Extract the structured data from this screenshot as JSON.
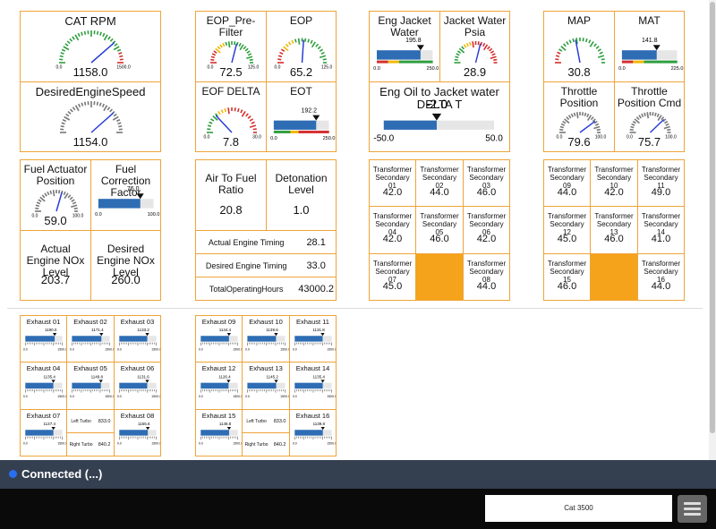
{
  "panels": [
    {
      "widgets": [
        {
          "type": "gauge",
          "title": "CAT RPM",
          "value": {
            "value": 1158,
            "label": "1158.0"
          },
          "range": [
            {
              "value": 0,
              "label": "0.0"
            },
            {
              "value": 1500,
              "label": "1500.0"
            }
          ],
          "scheme": "green"
        },
        {
          "type": "gauge",
          "title": "DesiredEngineSpeed",
          "value": {
            "value": 1154,
            "label": "1154.0"
          },
          "range": [
            0,
            1500
          ],
          "scheme": "gray"
        }
      ]
    },
    {
      "widgets": [
        {
          "type": "gauge",
          "title": "EOP_Pre-Filter",
          "value": 72.5,
          "range": [
            {
              "value": 0,
              "label": "0.0"
            },
            {
              "value": 125,
              "label": "125.0"
            }
          ],
          "scheme": "red-yellow-green"
        },
        {
          "type": "gauge",
          "title": "EOP",
          "value": 65.2,
          "range": [
            {
              "value": 0,
              "label": "0.0"
            },
            {
              "value": 125,
              "label": "125.0"
            }
          ],
          "scheme": "red-yellow-green"
        },
        {
          "type": "gauge",
          "title": "EOF DELTA",
          "value": 7.8,
          "range": [
            {
              "value": 0,
              "label": "0.0"
            },
            {
              "value": 30,
              "label": "30.0"
            }
          ],
          "scheme": "green-yellow-red"
        },
        {
          "type": "bar",
          "title": "EOT",
          "value": 192.2,
          "range": [
            {
              "value": 0,
              "label": "0.0"
            },
            {
              "value": 250,
              "label": "250.0"
            }
          ],
          "scheme": "green-yellow-red"
        }
      ]
    },
    {
      "widgets": [
        {
          "type": "bar",
          "title": "Eng Jacket Water",
          "value": 195.8,
          "range": [
            {
              "value": 0,
              "label": "0.0"
            },
            {
              "value": 250,
              "label": "250.0"
            }
          ],
          "scheme": "red-yellow-green"
        },
        {
          "type": "gauge",
          "title": "Jacket Water Psia",
          "value": 28.9,
          "range": [
            0,
            50
          ],
          "scheme": "green-yellow-red"
        },
        {
          "type": "bar",
          "title": "Eng Oil to Jacket water DELTA T",
          "value": {
            "value": -2,
            "label": "-2.0"
          },
          "range": [
            {
              "value": -50,
              "label": "-50.0"
            },
            {
              "value": 50,
              "label": "50.0"
            }
          ],
          "scheme": "none"
        }
      ]
    },
    {
      "widgets": [
        {
          "type": "gauge",
          "title": "MAP",
          "value": 30.8,
          "range": [
            0,
            70
          ],
          "scheme": "red-green"
        },
        {
          "type": "bar",
          "title": "MAT",
          "value": 141.8,
          "range": [
            {
              "value": 0,
              "label": "0.0"
            },
            {
              "value": 225,
              "label": "225.0"
            }
          ],
          "scheme": "red-yellow-green"
        },
        {
          "type": "gauge",
          "title": "Throttle Position",
          "value": 79.6,
          "range": [
            {
              "value": 0,
              "label": "0.0"
            },
            {
              "value": 100,
              "label": "100.0"
            }
          ],
          "scheme": "gray"
        },
        {
          "type": "gauge",
          "title": "Throttle Position Cmd",
          "value": 75.7,
          "range": [
            {
              "value": 0,
              "label": "0.0"
            },
            {
              "value": 100,
              "label": "100.0"
            }
          ],
          "scheme": "gray"
        }
      ]
    },
    {
      "widgets": [
        {
          "type": "gauge",
          "title": "Fuel Actuator Position",
          "value": {
            "value": 59,
            "label": "59.0"
          },
          "range": [
            {
              "value": 0,
              "label": "0.0"
            },
            {
              "value": 100,
              "label": "100.0"
            }
          ],
          "scheme": "gray"
        },
        {
          "type": "bar",
          "title": "Fuel Correction Factor",
          "value": {
            "value": 76,
            "label": "76.0"
          },
          "range": [
            {
              "value": 0,
              "label": "0.0"
            },
            {
              "value": 100,
              "label": "100.0"
            }
          ],
          "scheme": "none"
        },
        {
          "type": "text",
          "title": "Actual Engine NOx Level",
          "value": 203.7
        },
        {
          "type": "text",
          "title": "Desired Engine NOx Level",
          "value": {
            "value": 260,
            "label": "260.0"
          }
        }
      ]
    },
    {
      "widgets": [
        {
          "type": "text",
          "title": "Air To Fuel Ratio",
          "value": 20.8
        },
        {
          "type": "text",
          "title": "Detonation Level",
          "value": {
            "value": 1,
            "label": "1.0"
          }
        },
        {
          "type": "row",
          "title": "Actual Engine Timing",
          "value": 28.1
        },
        {
          "type": "row",
          "title": "Desired Engine Timing",
          "value": {
            "value": 33,
            "label": "33.0"
          }
        },
        {
          "type": "row",
          "title": "TotalOperatingHours",
          "value": 43000.2
        }
      ]
    },
    {
      "widgets": [
        {
          "type": "text",
          "title": "Transformer Secondary 01",
          "value": {
            "value": 42,
            "label": "42.0"
          }
        },
        {
          "type": "text",
          "title": "Transformer Secondary 02",
          "value": {
            "value": 44,
            "label": "44.0"
          }
        },
        {
          "type": "text",
          "title": "Transformer Secondary 03",
          "value": {
            "value": 46,
            "label": "46.0"
          }
        },
        {
          "type": "text",
          "title": "Transformer Secondary 04",
          "value": {
            "value": 42,
            "label": "42.0"
          }
        },
        {
          "type": "text",
          "title": "Transformer Secondary 05",
          "value": {
            "value": 46,
            "label": "46.0"
          }
        },
        {
          "type": "text",
          "title": "Transformer Secondary 06",
          "value": {
            "value": 42,
            "label": "42.0"
          }
        },
        {
          "type": "text",
          "title": "Transformer Secondary 07",
          "value": {
            "value": 45,
            "label": "45.0"
          }
        },
        {
          "type": "text",
          "title": "Transformer Secondary 08",
          "value": {
            "value": 44,
            "label": "44.0"
          }
        }
      ]
    },
    {
      "widgets": [
        {
          "type": "text",
          "title": "Transformer Secondary 09",
          "value": {
            "value": 44,
            "label": "44.0"
          }
        },
        {
          "type": "text",
          "title": "Transformer Secondary 10",
          "value": {
            "value": 42,
            "label": "42.0"
          }
        },
        {
          "type": "text",
          "title": "Transformer Secondary 11",
          "value": {
            "value": 49,
            "label": "49.0"
          }
        },
        {
          "type": "text",
          "title": "Transformer Secondary 12",
          "value": {
            "value": 45,
            "label": "45.0"
          }
        },
        {
          "type": "text",
          "title": "Transformer Secondary 13",
          "value": {
            "value": 46,
            "label": "46.0"
          }
        },
        {
          "type": "text",
          "title": "Transformer Secondary 14",
          "value": {
            "value": 41,
            "label": "41.0"
          }
        },
        {
          "type": "text",
          "title": "Transformer Secondary 15",
          "value": {
            "value": 46,
            "label": "46.0"
          }
        },
        {
          "type": "text",
          "title": "Transformer Secondary 16",
          "value": {
            "value": 44,
            "label": "44.0"
          }
        }
      ]
    },
    {
      "widgets": [
        {
          "type": "bar",
          "title": "Exhaust 01",
          "value": {
            "value": 1190,
            "label": "1190.0"
          },
          "range": [
            {
              "value": 0,
              "label": "0.0"
            },
            {
              "value": 1500,
              "label": "1500.0"
            }
          ],
          "scheme": "ruler"
        },
        {
          "type": "bar",
          "title": "Exhaust 02",
          "value": 1171.4,
          "range": [
            {
              "value": 0,
              "label": "0.0"
            },
            {
              "value": 1500,
              "label": "1500.0"
            }
          ],
          "scheme": "ruler"
        },
        {
          "type": "bar",
          "title": "Exhaust 03",
          "value": 1133.2,
          "range": [
            {
              "value": 0,
              "label": "0.0"
            },
            {
              "value": 1500,
              "label": "1500.0"
            }
          ],
          "scheme": "ruler"
        },
        {
          "type": "bar",
          "title": "Exhaust 04",
          "value": 1135.4,
          "range": [
            {
              "value": 0,
              "label": "0.0"
            },
            {
              "value": 1500,
              "label": "1500.0"
            }
          ],
          "scheme": "ruler"
        },
        {
          "type": "bar",
          "title": "Exhaust 05",
          "value": 1149.8,
          "range": [
            {
              "value": 0,
              "label": "0.0"
            },
            {
              "value": 1500,
              "label": "1500.0"
            }
          ],
          "scheme": "ruler"
        },
        {
          "type": "bar",
          "title": "Exhaust 06",
          "value": 1131.6,
          "range": [
            {
              "value": 0,
              "label": "0.0"
            },
            {
              "value": 1500,
              "label": "1500.0"
            }
          ],
          "scheme": "ruler"
        },
        {
          "type": "bar",
          "title": "Exhaust 07",
          "value": 1137.4,
          "range": [
            {
              "value": 0,
              "label": "0.0"
            },
            {
              "value": 1500,
              "label": "1500.0"
            }
          ],
          "scheme": "ruler"
        },
        {
          "type": "bar",
          "title": "Exhaust 08",
          "value": 1155.6,
          "range": [
            {
              "value": 0,
              "label": "0.0"
            },
            {
              "value": 1500,
              "label": "1500.0"
            }
          ],
          "scheme": "ruler"
        }
      ],
      "turbos": [
        {
          "name": "Left Turbo",
          "value": {
            "value": 833,
            "label": "833.0"
          }
        },
        {
          "name": "Right Turbo",
          "value": 840.2
        }
      ]
    },
    {
      "widgets": [
        {
          "type": "bar",
          "title": "Exhaust 09",
          "value": 1144.4,
          "range": [
            {
              "value": 0,
              "label": "0.0"
            },
            {
              "value": 1500,
              "label": "1500.0"
            }
          ],
          "scheme": "ruler"
        },
        {
          "type": "bar",
          "title": "Exhaust 10",
          "value": 1139.6,
          "range": [
            {
              "value": 0,
              "label": "0.0"
            },
            {
              "value": 1500,
              "label": "1500.0"
            }
          ],
          "scheme": "ruler"
        },
        {
          "type": "bar",
          "title": "Exhaust 11",
          "value": 1131.8,
          "range": [
            {
              "value": 0,
              "label": "0.0"
            },
            {
              "value": 1500,
              "label": "1500.0"
            }
          ],
          "scheme": "ruler"
        },
        {
          "type": "bar",
          "title": "Exhaust 12",
          "value": 1126.4,
          "range": [
            {
              "value": 0,
              "label": "0.0"
            },
            {
              "value": 1500,
              "label": "1500.0"
            }
          ],
          "scheme": "ruler"
        },
        {
          "type": "bar",
          "title": "Exhaust 13",
          "value": 1145.2,
          "range": [
            {
              "value": 0,
              "label": "0.0"
            },
            {
              "value": 1500,
              "label": "1500.0"
            }
          ],
          "scheme": "ruler"
        },
        {
          "type": "bar",
          "title": "Exhaust 14",
          "value": 1135.4,
          "range": [
            {
              "value": 0,
              "label": "0.0"
            },
            {
              "value": 1500,
              "label": "1500.0"
            }
          ],
          "scheme": "ruler"
        },
        {
          "type": "bar",
          "title": "Exhaust 15",
          "value": 1148.8,
          "range": [
            {
              "value": 0,
              "label": "0.0"
            },
            {
              "value": 1500,
              "label": "1500.0"
            }
          ],
          "scheme": "ruler"
        },
        {
          "type": "bar",
          "title": "Exhaust 16",
          "value": 1139.8,
          "range": [
            {
              "value": 0,
              "label": "0.0"
            },
            {
              "value": 1500,
              "label": "1500.0"
            }
          ],
          "scheme": "ruler"
        }
      ],
      "turbos": [
        {
          "name": "Left Turbo",
          "value": {
            "value": 833,
            "label": "833.0"
          }
        },
        {
          "name": "Right Turbo",
          "value": 840.2
        }
      ]
    }
  ],
  "status": {
    "text": "Connected (...)"
  },
  "footer": {
    "engine": "Cat 3500"
  }
}
